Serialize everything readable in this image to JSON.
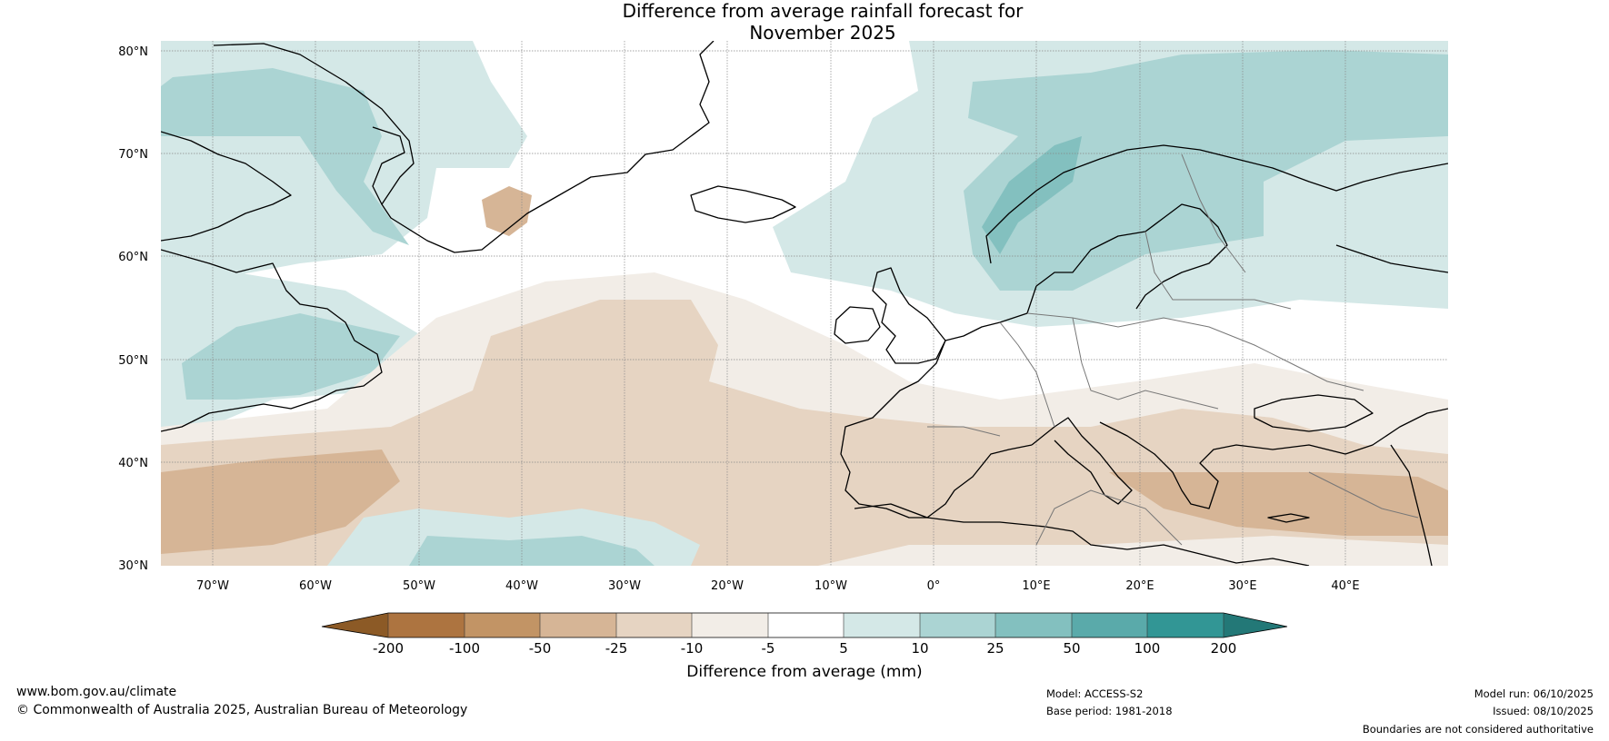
{
  "title": {
    "line1": "Difference from average rainfall forecast for",
    "line2": "November 2025"
  },
  "map": {
    "lat_labels": [
      "80°N",
      "70°N",
      "60°N",
      "50°N",
      "40°N",
      "30°N"
    ],
    "lon_labels": [
      "70°W",
      "60°W",
      "50°W",
      "40°W",
      "30°W",
      "20°W",
      "10°W",
      "0°",
      "10°E",
      "20°E",
      "30°E",
      "40°E"
    ],
    "lat_range": [
      30,
      81
    ],
    "lon_range": [
      -75,
      50
    ],
    "colors": {
      "dry_200": "#8c5a26",
      "dry_100": "#ad7440",
      "dry_50": "#c29465",
      "dry_25": "#d6b596",
      "dry_10": "#e6d4c2",
      "dry_5": "#f2ede7",
      "neutral": "#ffffff",
      "wet_5": "#d4e8e7",
      "wet_10": "#abd4d3",
      "wet_25": "#83c0bf",
      "wet_50": "#5aaaaa",
      "wet_100": "#329695",
      "wet_200": "#237877"
    }
  },
  "colorbar": {
    "ticks": [
      "-200",
      "-100",
      "-50",
      "-25",
      "-10",
      "-5",
      "5",
      "10",
      "25",
      "50",
      "100",
      "200"
    ],
    "label": "Difference from average (mm)"
  },
  "footer": {
    "website": "www.bom.gov.au/climate",
    "copyright": "© Commonwealth of Australia 2025, Australian Bureau of Meteorology",
    "model": "Model: ACCESS-S2",
    "base_period": "Base period: 1981-2018",
    "model_run": "Model run: 06/10/2025",
    "issued": "Issued: 08/10/2025",
    "disclaimer": "Boundaries are not considered authoritative"
  }
}
